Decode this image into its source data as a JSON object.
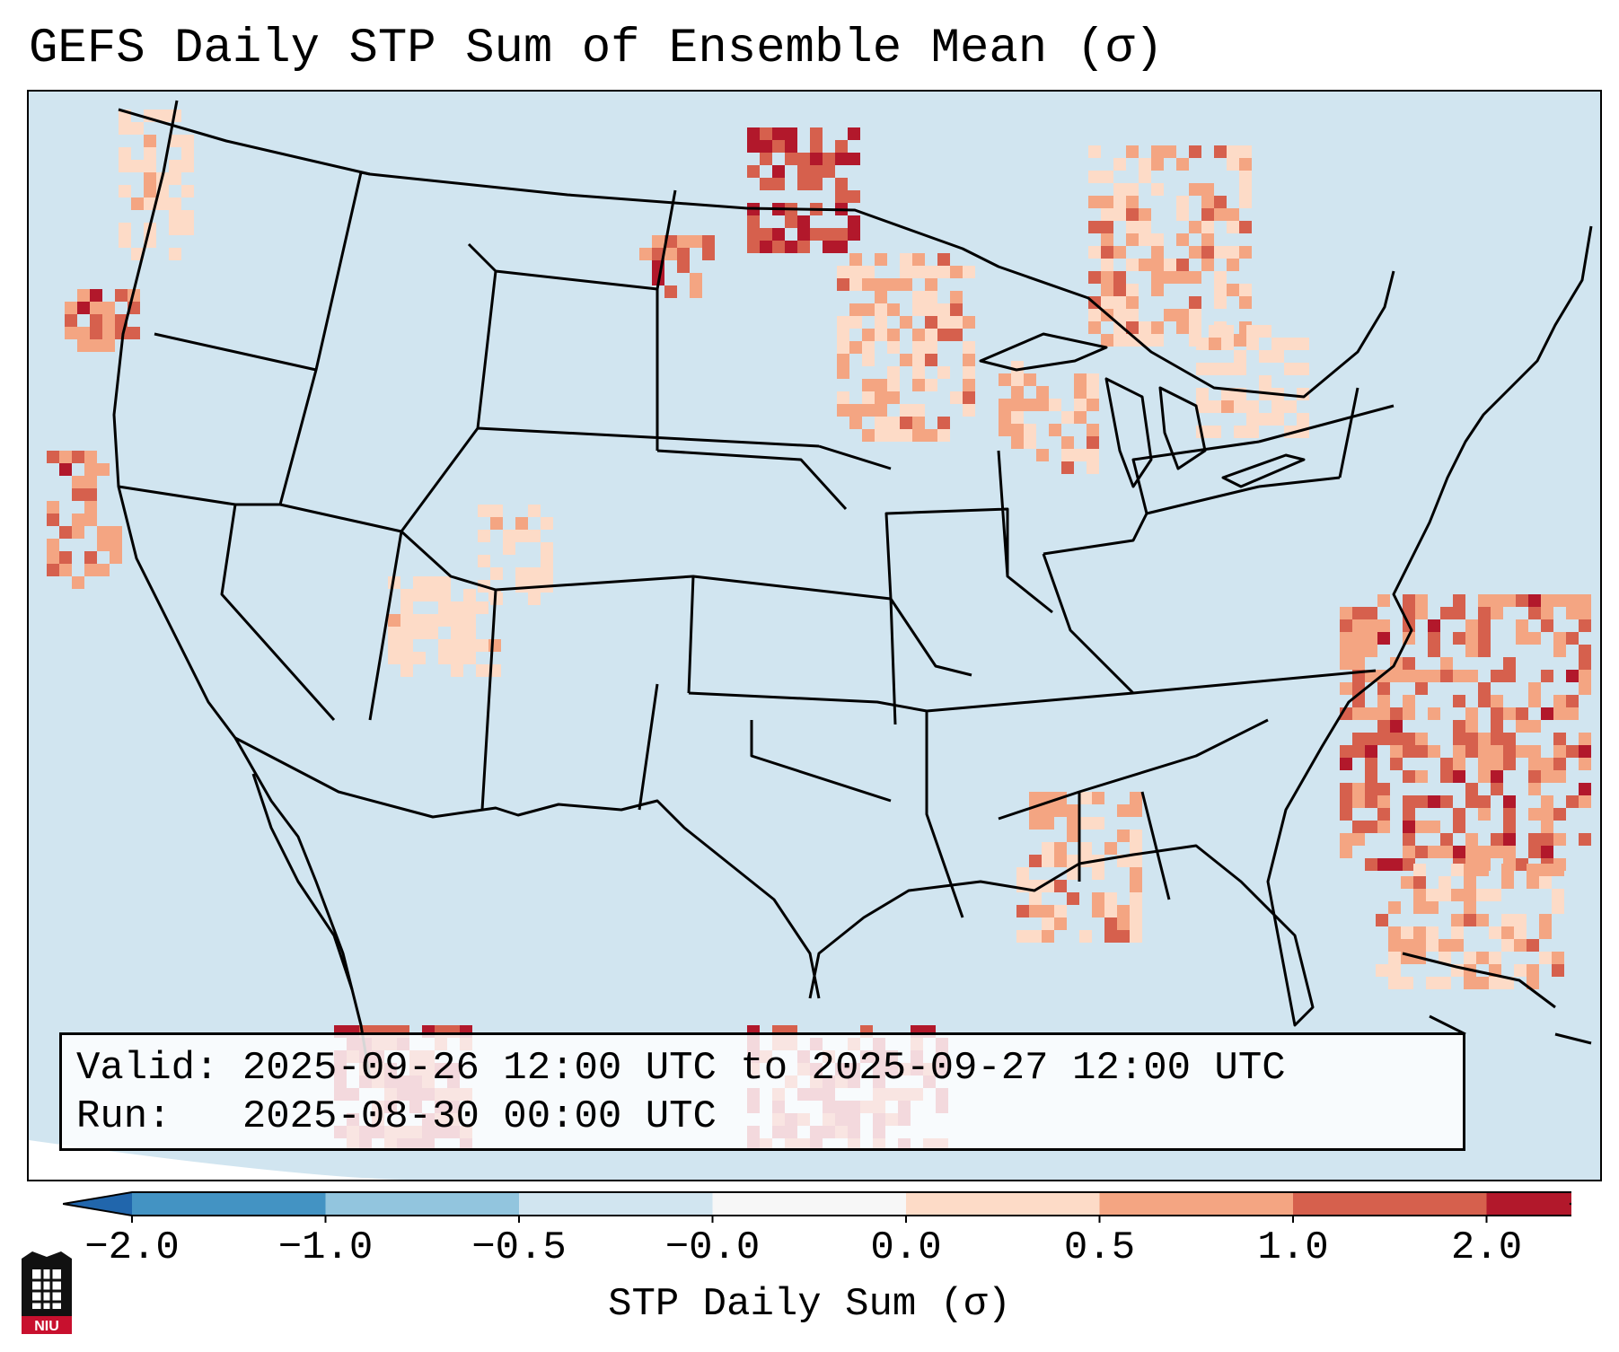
{
  "title": "GEFS Daily STP Sum of Ensemble Mean (σ)",
  "info": {
    "valid_label": "Valid:",
    "valid_text": "2025-09-26 12:00 UTC to 2025-09-27 12:00 UTC",
    "run_label": "Run:",
    "run_text": "2025-08-30 00:00 UTC"
  },
  "colorbar": {
    "label": "STP Daily Sum (σ)",
    "ticks": [
      "−2.0",
      "−1.0",
      "−0.5",
      "−0.0",
      "0.0",
      "0.5",
      "1.0",
      "2.0"
    ],
    "bins": [
      "#4393c3",
      "#92c5de",
      "#d1e5f0",
      "#f7f7f7",
      "#fddbc7",
      "#f4a582",
      "#d6604d",
      "#b2182b"
    ],
    "extend_low_color": "#2166ac",
    "extend_high_color": "#b2182b"
  },
  "map": {
    "ocean_land_color": "#d1e5f0",
    "border_color": "#000000"
  },
  "logo": {
    "text": "NIU",
    "color": "#c8102e"
  }
}
